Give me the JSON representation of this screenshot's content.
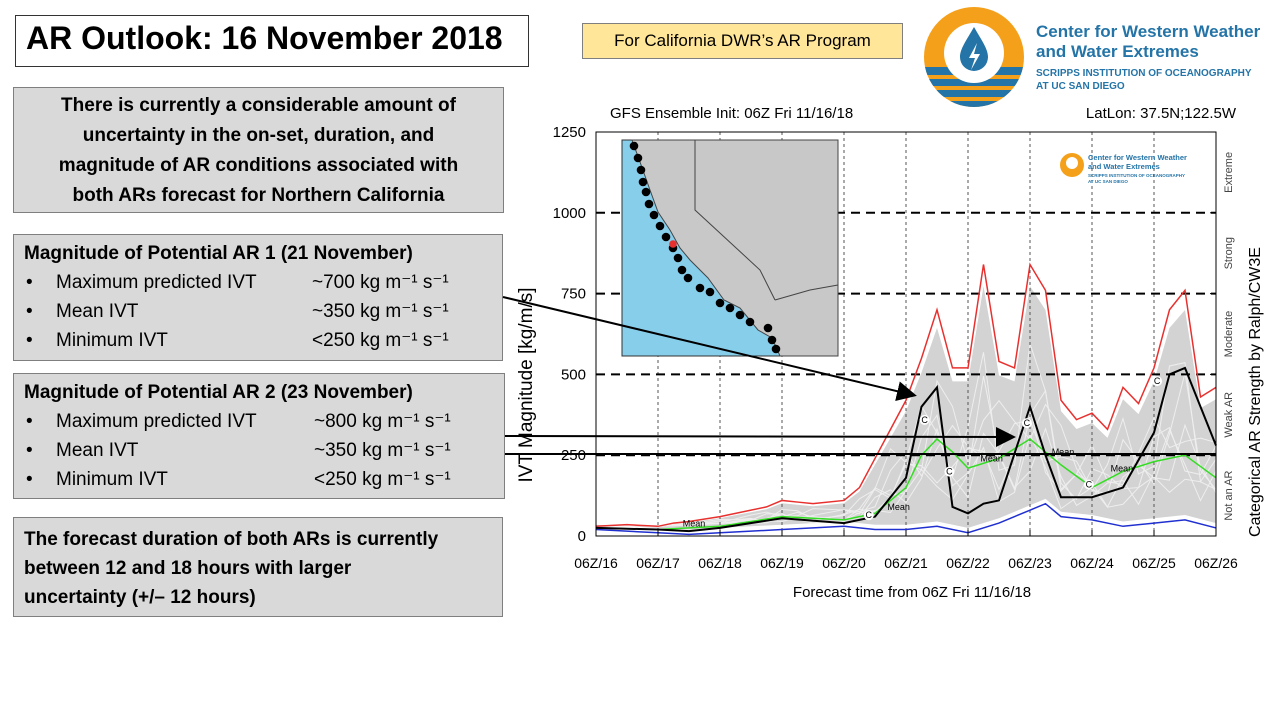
{
  "slide": {
    "title": "AR Outlook: 16 November 2018",
    "program_badge": "For California DWR’s AR Program",
    "logo": {
      "line1": "Center for Western Weather",
      "line2": "and Water Extremes",
      "line3": "SCRIPPS INSTITUTION OF OCEANOGRAPHY",
      "line4": "AT UC SAN DIEGO",
      "icon": "water-drop-lightning-icon",
      "colors": {
        "orange": "#f5a01a",
        "blue": "#2474a7"
      }
    },
    "summary": "There is currently a considerable amount of uncertainty in the on-set, duration, and magnitude of AR conditions associated with both ARs forecast for Northern California",
    "summary_lines": [
      "There is currently a considerable amount of",
      "uncertainty in the on-set, duration, and",
      "magnitude of AR conditions associated with",
      "both ARs forecast for Northern California"
    ],
    "ar1": {
      "heading": "Magnitude of Potential AR 1 (21 November)",
      "items": [
        {
          "label": "Maximum predicted IVT",
          "value": "~700 kg m⁻¹ s⁻¹"
        },
        {
          "label": "Mean IVT",
          "value": "~350 kg m⁻¹ s⁻¹"
        },
        {
          "label": "Minimum IVT",
          "value": "<250 kg m⁻¹ s⁻¹"
        }
      ]
    },
    "ar2": {
      "heading": "Magnitude of Potential AR 2 (23 November)",
      "items": [
        {
          "label": "Maximum predicted IVT",
          "value": "~800 kg m⁻¹ s⁻¹"
        },
        {
          "label": "Mean IVT",
          "value": "~350 kg m⁻¹ s⁻¹"
        },
        {
          "label": "Minimum IVT",
          "value": "<250 kg m⁻¹ s⁻¹"
        }
      ]
    },
    "bullet": "•",
    "duration_lines": [
      "The forecast duration of both ARs is currently",
      "between 12 and 18 hours with larger",
      "uncertainty (+/– 12 hours)"
    ]
  },
  "chart_data": {
    "type": "line",
    "title_left": "GFS Ensemble Init: 06Z Fri 11/16/18",
    "title_right": "LatLon: 37.5N;122.5W",
    "xlabel": "Forecast time from 06Z Fri 11/16/18",
    "ylabel": "IVT Magnitude [kg/m/s]",
    "right_label": "Categorical AR Strength by Ralph/CW3E",
    "ylim": [
      0,
      1250
    ],
    "yticks": [
      0,
      250,
      500,
      750,
      1000,
      1250
    ],
    "xticks": [
      "06Z/16",
      "06Z/17",
      "06Z/18",
      "06Z/19",
      "06Z/20",
      "06Z/21",
      "06Z/22",
      "06Z/23",
      "06Z/24",
      "06Z/25",
      "06Z/26"
    ],
    "xlim_days": [
      0,
      10
    ],
    "categories": [
      {
        "name": "Not an AR",
        "range": [
          0,
          250
        ]
      },
      {
        "name": "Weak AR",
        "range": [
          250,
          500
        ]
      },
      {
        "name": "Moderate",
        "range": [
          500,
          750
        ]
      },
      {
        "name": "Strong",
        "range": [
          750,
          1000
        ]
      },
      {
        "name": "Extreme",
        "range": [
          1000,
          1250
        ]
      }
    ],
    "threshold_lines": [
      250,
      500,
      750,
      1000
    ],
    "inset_logo_text": [
      "Center for Western Weather",
      "and Water Extremes",
      "SCRIPPS INSTITUTION OF OCEANOGRAPHY",
      "AT UC SAN DIEGO"
    ],
    "series": [
      {
        "name": "Max",
        "color": "#e8312f",
        "x": [
          0,
          0.5,
          1,
          1.25,
          1.5,
          2,
          2.5,
          2.75,
          3,
          3.25,
          3.5,
          4,
          4.25,
          4.5,
          4.75,
          5,
          5.25,
          5.5,
          5.75,
          6,
          6.25,
          6.5,
          6.75,
          7,
          7.25,
          7.5,
          7.75,
          8,
          8.25,
          8.5,
          8.75,
          9,
          9.25,
          9.5,
          9.75,
          10
        ],
        "y": [
          30,
          35,
          30,
          40,
          45,
          60,
          80,
          90,
          110,
          105,
          100,
          110,
          150,
          240,
          330,
          420,
          550,
          700,
          520,
          520,
          840,
          540,
          520,
          840,
          760,
          420,
          360,
          380,
          330,
          460,
          410,
          520,
          700,
          760,
          430,
          460
        ]
      },
      {
        "name": "Min",
        "color": "#2030d0",
        "x": [
          0,
          1,
          1.5,
          2,
          3,
          4,
          4.5,
          5,
          5.5,
          6,
          6.5,
          7,
          7.25,
          7.5,
          8,
          8.5,
          9,
          9.5,
          10
        ],
        "y": [
          20,
          10,
          5,
          10,
          20,
          30,
          20,
          20,
          30,
          10,
          40,
          80,
          100,
          60,
          50,
          30,
          40,
          50,
          25
        ]
      },
      {
        "name": "Mean",
        "color": "#33dd22",
        "x": [
          0,
          1,
          2,
          3,
          3.5,
          4,
          4.5,
          5,
          5.25,
          5.5,
          5.75,
          6,
          6.5,
          7,
          7.5,
          8,
          8.5,
          9,
          9.5,
          10
        ],
        "y": [
          25,
          20,
          30,
          60,
          55,
          50,
          70,
          150,
          250,
          300,
          260,
          210,
          240,
          300,
          220,
          150,
          200,
          230,
          250,
          180
        ]
      },
      {
        "name": "Control",
        "color": "#000000",
        "x": [
          0,
          1,
          1.5,
          2,
          3,
          4,
          4.5,
          5,
          5.25,
          5.5,
          5.75,
          6,
          6.25,
          6.5,
          7,
          7.25,
          7.5,
          8,
          8.5,
          9,
          9.25,
          9.5,
          9.75,
          10
        ],
        "y": [
          25,
          20,
          15,
          25,
          55,
          40,
          60,
          180,
          400,
          460,
          90,
          70,
          100,
          110,
          400,
          250,
          120,
          120,
          150,
          320,
          500,
          520,
          400,
          280
        ]
      }
    ],
    "annotations": [
      "Mean",
      "C"
    ],
    "map": {
      "description": "California coast map with ensemble points",
      "selected_point": "37.5N;122.5W",
      "colors": {
        "ocean": "#87ceeb",
        "land": "#c8c8c8",
        "points": "#000000",
        "selected": "#e8312f"
      }
    }
  }
}
